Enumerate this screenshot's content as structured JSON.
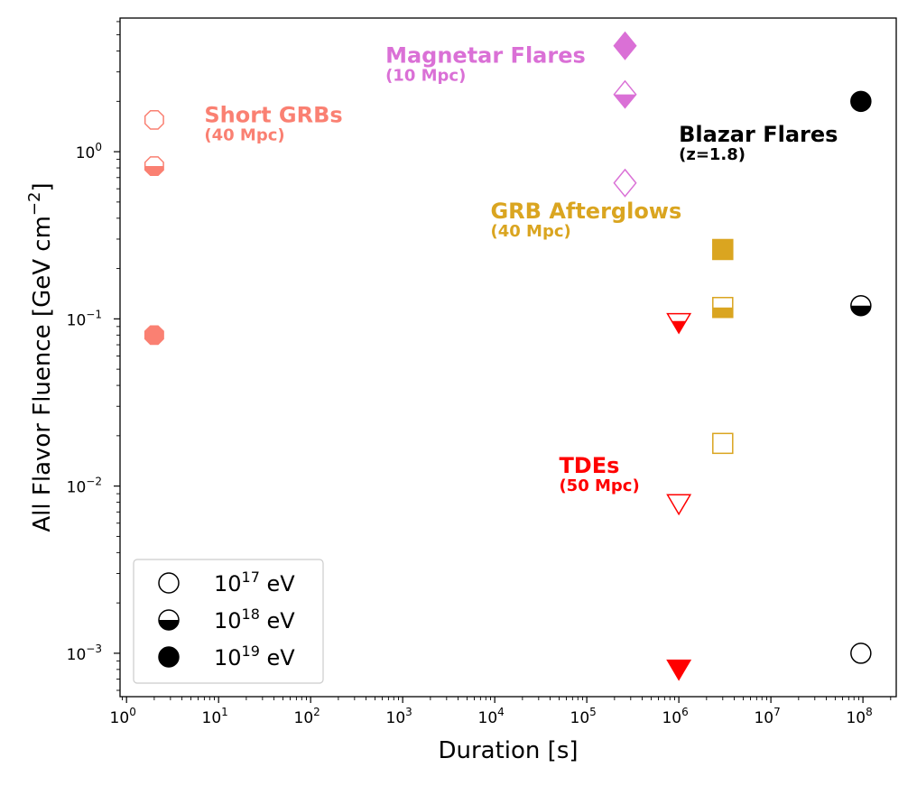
{
  "chart_data": {
    "type": "scatter",
    "xlabel": "Duration [s]",
    "ylabel_main": "All Flavor Fluence [GeV cm",
    "ylabel_exp": "−2",
    "ylabel_close": "]",
    "xscale": "log",
    "yscale": "log",
    "xlim": [
      0.85,
      230000000
    ],
    "ylim": [
      0.00055,
      6.3
    ],
    "x_ticks": [
      {
        "base": "10",
        "exp": "0",
        "value": 1
      },
      {
        "base": "10",
        "exp": "1",
        "value": 10
      },
      {
        "base": "10",
        "exp": "2",
        "value": 100
      },
      {
        "base": "10",
        "exp": "3",
        "value": 1000
      },
      {
        "base": "10",
        "exp": "4",
        "value": 10000
      },
      {
        "base": "10",
        "exp": "5",
        "value": 100000
      },
      {
        "base": "10",
        "exp": "6",
        "value": 1000000
      },
      {
        "base": "10",
        "exp": "7",
        "value": 10000000
      },
      {
        "base": "10",
        "exp": "8",
        "value": 100000000
      }
    ],
    "y_ticks": [
      {
        "base": "10",
        "exp": "−3",
        "value": 0.001
      },
      {
        "base": "10",
        "exp": "−2",
        "value": 0.01
      },
      {
        "base": "10",
        "exp": "−1",
        "value": 0.1
      },
      {
        "base": "10",
        "exp": "0",
        "value": 1
      }
    ],
    "series": [
      {
        "name": "Short GRBs",
        "distance": "(40 Mpc)",
        "color": "#fa8072",
        "marker": "octagon",
        "points": [
          {
            "x": 2,
            "y": 1.55,
            "energy": "1e17"
          },
          {
            "x": 2,
            "y": 0.82,
            "energy": "1e18"
          },
          {
            "x": 2,
            "y": 0.08,
            "energy": "1e19"
          }
        ]
      },
      {
        "name": "Magnetar Flares",
        "distance": "(10 Mpc)",
        "color": "#da70d6",
        "marker": "diamond",
        "points": [
          {
            "x": 260000,
            "y": 0.65,
            "energy": "1e17"
          },
          {
            "x": 260000,
            "y": 2.2,
            "energy": "1e18"
          },
          {
            "x": 260000,
            "y": 4.3,
            "energy": "1e19"
          }
        ]
      },
      {
        "name": "Blazar Flares",
        "distance": "(z=1.8)",
        "color": "#000000",
        "marker": "circle",
        "points": [
          {
            "x": 95000000,
            "y": 0.001,
            "energy": "1e17"
          },
          {
            "x": 95000000,
            "y": 0.12,
            "energy": "1e18"
          },
          {
            "x": 95000000,
            "y": 2.0,
            "energy": "1e19"
          }
        ]
      },
      {
        "name": "GRB Afterglows",
        "distance": "(40 Mpc)",
        "color": "#daa520",
        "marker": "square",
        "points": [
          {
            "x": 3000000,
            "y": 0.018,
            "energy": "1e17"
          },
          {
            "x": 3000000,
            "y": 0.117,
            "energy": "1e18"
          },
          {
            "x": 3000000,
            "y": 0.26,
            "energy": "1e19"
          }
        ]
      },
      {
        "name": "TDEs",
        "distance": "(50 Mpc)",
        "color": "#ff0000",
        "marker": "triangle-down",
        "points": [
          {
            "x": 1000000,
            "y": 0.008,
            "energy": "1e17"
          },
          {
            "x": 1000000,
            "y": 0.097,
            "energy": "1e18"
          },
          {
            "x": 1000000,
            "y": 0.00082,
            "energy": "1e19"
          }
        ]
      }
    ],
    "legend": {
      "location": "lower-left",
      "entries": [
        {
          "base": "10",
          "exp": "17",
          "unit": " eV",
          "fill": "none"
        },
        {
          "base": "10",
          "exp": "18",
          "unit": " eV",
          "fill": "bottom"
        },
        {
          "base": "10",
          "exp": "19",
          "unit": " eV",
          "fill": "full"
        }
      ]
    }
  }
}
